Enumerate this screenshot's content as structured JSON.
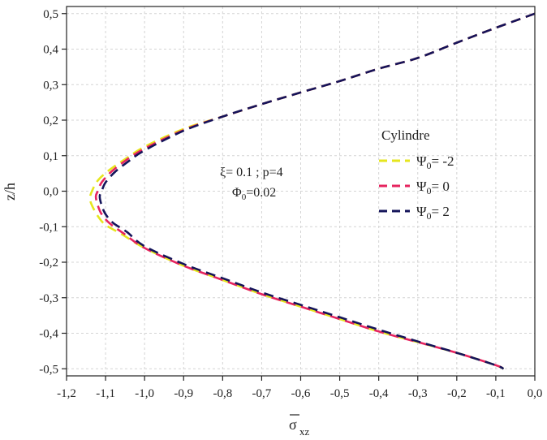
{
  "chart_data": {
    "type": "line",
    "xlabel": "σ",
    "xlabel_sub": "xz",
    "ylabel": "z/h",
    "xlim": [
      -1.2,
      0.0
    ],
    "ylim": [
      -0.52,
      0.52
    ],
    "x_ticks": [
      -1.2,
      -1.1,
      -1.0,
      -0.9,
      -0.8,
      -0.7,
      -0.6,
      -0.5,
      -0.4,
      -0.3,
      -0.2,
      -0.1,
      0.0
    ],
    "x_tick_labels": [
      "-1,2",
      "-1,1",
      "-1,0",
      "-0,9",
      "-0,8",
      "-0,7",
      "-0,6",
      "-0,5",
      "-0,4",
      "-0,3",
      "-0,2",
      "-0,1",
      "0,0"
    ],
    "y_ticks": [
      -0.5,
      -0.4,
      -0.3,
      -0.2,
      -0.1,
      0.0,
      0.1,
      0.2,
      0.3,
      0.4,
      0.5
    ],
    "y_tick_labels": [
      "-0,5",
      "-0,4",
      "-0,3",
      "-0,2",
      "-0,1",
      "0,0",
      "0,1",
      "0,2",
      "0,3",
      "0,4",
      "0,5"
    ],
    "grid": true,
    "legend": {
      "title": "Cylindre",
      "placement": "center-right",
      "entries": [
        {
          "symbol": "Ψ",
          "sub": "0",
          "suffix": "= -2",
          "color": "#e6e61e"
        },
        {
          "symbol": "Ψ",
          "sub": "0",
          "suffix": "= 0",
          "color": "#e6245f"
        },
        {
          "symbol": "Ψ",
          "sub": "0",
          "suffix": "= 2",
          "color": "#14145a"
        }
      ]
    },
    "annotations": [
      {
        "text": "ξ= 0.1 ; p=4"
      },
      {
        "symbol": "Φ",
        "sub": "0",
        "suffix": "=0.02"
      }
    ],
    "series": [
      {
        "color": "#e6e61e",
        "style": "dashed",
        "points": [
          [
            0.0,
            0.5
          ],
          [
            -0.1,
            0.46
          ],
          [
            -0.2,
            0.418
          ],
          [
            -0.3,
            0.375
          ],
          [
            -0.4,
            0.345
          ],
          [
            -0.5,
            0.31
          ],
          [
            -0.6,
            0.278
          ],
          [
            -0.7,
            0.245
          ],
          [
            -0.8,
            0.21
          ],
          [
            -0.9,
            0.175
          ],
          [
            -1.0,
            0.125
          ],
          [
            -1.05,
            0.09
          ],
          [
            -1.09,
            0.06
          ],
          [
            -1.12,
            0.03
          ],
          [
            -1.135,
            0.0
          ],
          [
            -1.14,
            -0.02
          ],
          [
            -1.135,
            -0.04
          ],
          [
            -1.12,
            -0.07
          ],
          [
            -1.1,
            -0.095
          ],
          [
            -1.06,
            -0.12
          ],
          [
            -1.0,
            -0.16
          ],
          [
            -0.9,
            -0.21
          ],
          [
            -0.8,
            -0.25
          ],
          [
            -0.7,
            -0.29
          ],
          [
            -0.6,
            -0.325
          ],
          [
            -0.5,
            -0.36
          ],
          [
            -0.4,
            -0.395
          ],
          [
            -0.3,
            -0.425
          ],
          [
            -0.2,
            -0.455
          ],
          [
            -0.1,
            -0.49
          ],
          [
            -0.08,
            -0.5
          ]
        ]
      },
      {
        "color": "#e6245f",
        "style": "dashed",
        "points": [
          [
            0.0,
            0.5
          ],
          [
            -0.1,
            0.46
          ],
          [
            -0.2,
            0.418
          ],
          [
            -0.3,
            0.375
          ],
          [
            -0.4,
            0.345
          ],
          [
            -0.5,
            0.31
          ],
          [
            -0.6,
            0.278
          ],
          [
            -0.7,
            0.245
          ],
          [
            -0.8,
            0.21
          ],
          [
            -0.9,
            0.172
          ],
          [
            -1.0,
            0.12
          ],
          [
            -1.05,
            0.085
          ],
          [
            -1.085,
            0.055
          ],
          [
            -1.11,
            0.025
          ],
          [
            -1.12,
            0.0
          ],
          [
            -1.125,
            -0.015
          ],
          [
            -1.12,
            -0.04
          ],
          [
            -1.11,
            -0.065
          ],
          [
            -1.09,
            -0.09
          ],
          [
            -1.055,
            -0.118
          ],
          [
            -1.0,
            -0.16
          ],
          [
            -0.9,
            -0.21
          ],
          [
            -0.8,
            -0.25
          ],
          [
            -0.7,
            -0.29
          ],
          [
            -0.6,
            -0.325
          ],
          [
            -0.5,
            -0.36
          ],
          [
            -0.4,
            -0.395
          ],
          [
            -0.3,
            -0.425
          ],
          [
            -0.2,
            -0.455
          ],
          [
            -0.1,
            -0.49
          ],
          [
            -0.08,
            -0.5
          ]
        ]
      },
      {
        "color": "#14145a",
        "style": "dashed",
        "points": [
          [
            0.0,
            0.5
          ],
          [
            -0.1,
            0.46
          ],
          [
            -0.2,
            0.418
          ],
          [
            -0.3,
            0.375
          ],
          [
            -0.4,
            0.345
          ],
          [
            -0.5,
            0.31
          ],
          [
            -0.6,
            0.278
          ],
          [
            -0.7,
            0.245
          ],
          [
            -0.8,
            0.21
          ],
          [
            -0.9,
            0.17
          ],
          [
            -1.0,
            0.115
          ],
          [
            -1.04,
            0.085
          ],
          [
            -1.075,
            0.055
          ],
          [
            -1.1,
            0.025
          ],
          [
            -1.11,
            0.0
          ],
          [
            -1.115,
            -0.015
          ],
          [
            -1.11,
            -0.04
          ],
          [
            -1.1,
            -0.065
          ],
          [
            -1.08,
            -0.09
          ],
          [
            -1.045,
            -0.115
          ],
          [
            -1.0,
            -0.155
          ],
          [
            -0.9,
            -0.205
          ],
          [
            -0.8,
            -0.245
          ],
          [
            -0.7,
            -0.285
          ],
          [
            -0.6,
            -0.32
          ],
          [
            -0.5,
            -0.355
          ],
          [
            -0.4,
            -0.39
          ],
          [
            -0.3,
            -0.423
          ],
          [
            -0.2,
            -0.455
          ],
          [
            -0.1,
            -0.49
          ],
          [
            -0.08,
            -0.5
          ]
        ]
      }
    ]
  }
}
